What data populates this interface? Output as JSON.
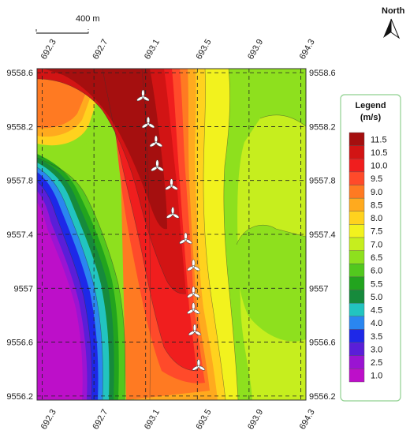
{
  "map": {
    "north_label": "North",
    "scale_label": "400 m",
    "x_ticks": [
      "692.3",
      "692.7",
      "693.1",
      "693.5",
      "693.9",
      "694.3"
    ],
    "y_ticks": [
      "9558.6",
      "9558.2",
      "9557.8",
      "9557.4",
      "9557",
      "9556.6",
      "9556.2"
    ],
    "x_range": [
      692.3,
      694.3
    ],
    "y_range": [
      9556.2,
      9558.6
    ],
    "grid": "dashed",
    "turbine_icon": "wind-turbine-icon",
    "turbines": [
      {
        "x": 693.08,
        "y": 9558.42
      },
      {
        "x": 693.12,
        "y": 9558.22
      },
      {
        "x": 693.18,
        "y": 9558.08
      },
      {
        "x": 693.19,
        "y": 9557.9
      },
      {
        "x": 693.3,
        "y": 9557.76
      },
      {
        "x": 693.31,
        "y": 9557.55
      },
      {
        "x": 693.41,
        "y": 9557.36
      },
      {
        "x": 693.47,
        "y": 9557.16
      },
      {
        "x": 693.47,
        "y": 9556.96
      },
      {
        "x": 693.47,
        "y": 9556.84
      },
      {
        "x": 693.48,
        "y": 9556.68
      },
      {
        "x": 693.51,
        "y": 9556.42
      }
    ]
  },
  "legend": {
    "title_line1": "Legend",
    "title_line2": "(m/s)",
    "position": "right",
    "bins": [
      {
        "label": "11.5",
        "color": "#a50f0f"
      },
      {
        "label": "10.5",
        "color": "#d21414"
      },
      {
        "label": "10.0",
        "color": "#f01e1e"
      },
      {
        "label": "9.5",
        "color": "#ff4a2a"
      },
      {
        "label": "9.0",
        "color": "#ff7a22"
      },
      {
        "label": "8.5",
        "color": "#ffaa1e"
      },
      {
        "label": "8.0",
        "color": "#ffd21e"
      },
      {
        "label": "7.5",
        "color": "#f2f21e"
      },
      {
        "label": "7.0",
        "color": "#c6ee1e"
      },
      {
        "label": "6.5",
        "color": "#8ee01e"
      },
      {
        "label": "6.0",
        "color": "#52c81e"
      },
      {
        "label": "5.5",
        "color": "#22a41e"
      },
      {
        "label": "5.0",
        "color": "#168a3c"
      },
      {
        "label": "4.5",
        "color": "#22c4c0"
      },
      {
        "label": "4.0",
        "color": "#2a86f0"
      },
      {
        "label": "3.5",
        "color": "#1e28e8"
      },
      {
        "label": "3.0",
        "color": "#5a1ed8"
      },
      {
        "label": "2.5",
        "color": "#9a14d2"
      },
      {
        "label": "1.0",
        "color": "#bd0fc9"
      }
    ]
  }
}
